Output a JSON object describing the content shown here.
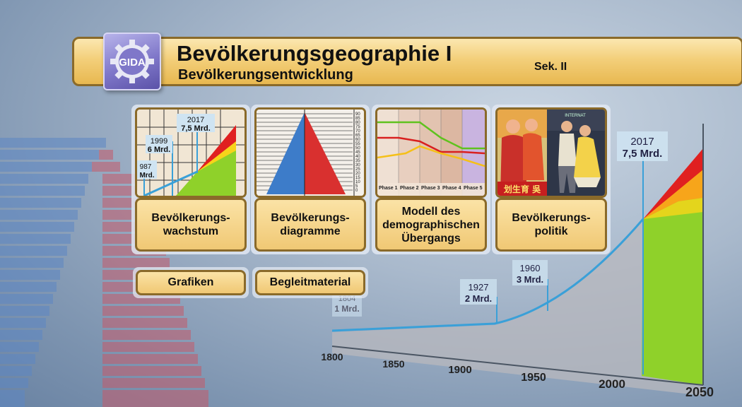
{
  "header": {
    "title": "Bevölkerungsgeographie I",
    "subtitle": "Bevölkerungsentwicklung",
    "level": "Sek. II",
    "logo_text": "GIDA"
  },
  "cards": [
    {
      "label": "Bevölkerungs-\nwachstum",
      "icon": "population-growth-chart"
    },
    {
      "label": "Bevölkerungs-\ndiagramme",
      "icon": "population-pyramid"
    },
    {
      "label": "Modell des\ndemographischen\nÜbergangs",
      "icon": "demographic-transition-chart"
    },
    {
      "label": "Bevölkerungs-\npolitik",
      "icon": "propaganda-poster"
    }
  ],
  "card1_thumb": {
    "markers": [
      {
        "year": "2017",
        "value": "7,5 Mrd."
      },
      {
        "year": "1999",
        "value": "6 Mrd."
      },
      {
        "year": "987",
        "value": "Mrd."
      }
    ]
  },
  "card2_thumb": {
    "ticks": [
      "90",
      "85",
      "80",
      "75",
      "70",
      "65",
      "60",
      "55",
      "50",
      "45",
      "40",
      "35",
      "30",
      "25",
      "20",
      "15",
      "10",
      "5",
      "0"
    ]
  },
  "card3_thumb": {
    "phases": [
      "Phase 1",
      "Phase 2",
      "Phase 3",
      "Phase 4",
      "Phase 5"
    ]
  },
  "card4_thumb": {
    "poster_text": "INTERNAT",
    "chinese_text": "划生育 吳"
  },
  "buttons": {
    "grafiken": "Grafiken",
    "begleitmaterial": "Begleitmaterial"
  },
  "background_chart": {
    "x_ticks": [
      "1800",
      "1850",
      "1900",
      "1950",
      "2000",
      "2050"
    ],
    "annotations": [
      {
        "year": "1804",
        "value": "1 Mrd."
      },
      {
        "year": "1927",
        "value": "2 Mrd."
      },
      {
        "year": "1960",
        "value": "3 Mrd."
      },
      {
        "year": "2017",
        "value": "7,5 Mrd."
      }
    ]
  },
  "colors": {
    "gold": "#f0c874",
    "border": "#8a6a2a",
    "logo_purple": "#7f77c9",
    "curve_blue": "#3aa0d8",
    "red": "#e02020",
    "orange": "#f7a51a",
    "green": "#8fd12a"
  }
}
